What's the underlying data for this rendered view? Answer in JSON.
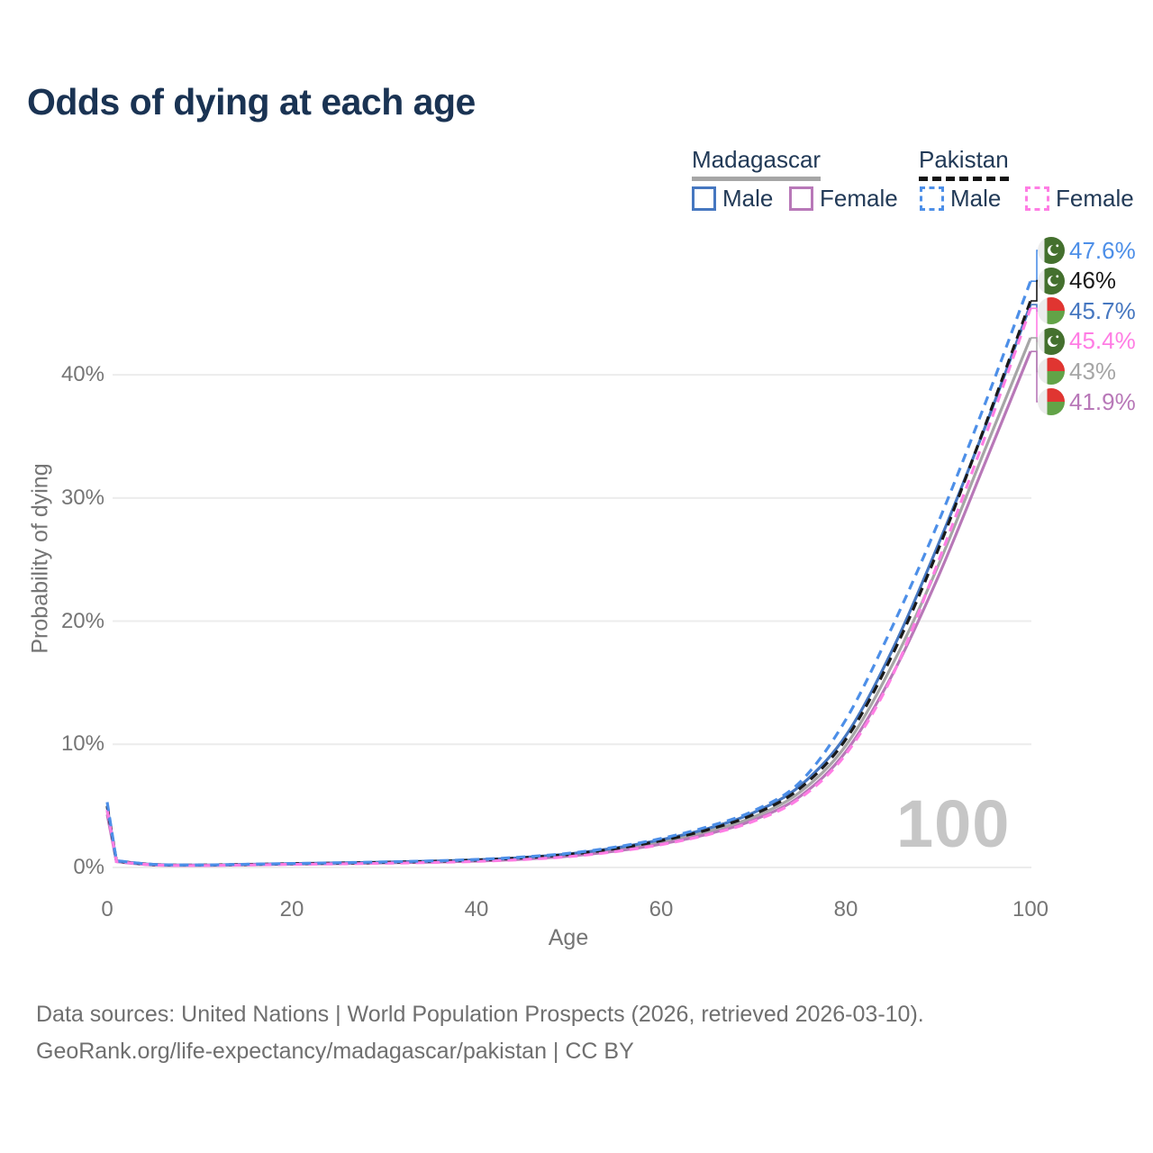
{
  "title": "Odds of dying at each age",
  "legend": {
    "groups": [
      {
        "label": "Madagascar",
        "style": "solid",
        "underline_color": "#A6A6A6"
      },
      {
        "label": "Pakistan",
        "style": "dashed",
        "underline_color": "#141414"
      }
    ],
    "entries": [
      {
        "label": "Male",
        "color": "#4677C0",
        "dash": false,
        "group": "Madagascar"
      },
      {
        "label": "Female",
        "color": "#B878B8",
        "dash": false,
        "group": "Madagascar"
      },
      {
        "label": "Male",
        "color": "#4D8FE8",
        "dash": true,
        "group": "Pakistan"
      },
      {
        "label": "Female",
        "color": "#FF7DE4",
        "dash": true,
        "group": "Pakistan"
      }
    ]
  },
  "watermark": "100",
  "footer": {
    "line1": "Data sources: United Nations | World Population Prospects (2026, retrieved 2026-03-10).",
    "line2": "GeoRank.org/life-expectancy/madagascar/pakistan | CC BY"
  },
  "chart_data": {
    "type": "line",
    "title": "Odds of dying at each age",
    "xlabel": "Age",
    "ylabel": "Probability of dying",
    "xlim": [
      0,
      100
    ],
    "ylim": [
      0,
      48
    ],
    "grid": "horizontal",
    "legend_position": "top-right",
    "x_tick_labels": [
      "0",
      "20",
      "40",
      "60",
      "80",
      "100"
    ],
    "x_tick_values": [
      0,
      20,
      40,
      60,
      80,
      100
    ],
    "y_tick_labels": [
      "0%",
      "10%",
      "20%",
      "30%",
      "40%"
    ],
    "y_tick_values": [
      0,
      10,
      20,
      30,
      40
    ],
    "x": [
      0,
      1,
      5,
      10,
      15,
      20,
      25,
      30,
      35,
      40,
      45,
      50,
      55,
      60,
      65,
      70,
      75,
      80,
      85,
      90,
      95,
      100
    ],
    "series": [
      {
        "name": "Pakistan Male",
        "flag": "pakistan",
        "color": "#4D8FE8",
        "dash": true,
        "end_label": "47.6%",
        "values": [
          5.3,
          0.55,
          0.25,
          0.2,
          0.26,
          0.32,
          0.38,
          0.45,
          0.53,
          0.65,
          0.85,
          1.15,
          1.65,
          2.35,
          3.3,
          4.6,
          6.9,
          12.0,
          19.5,
          28.0,
          37.5,
          47.6
        ]
      },
      {
        "name": "Pakistan",
        "flag": "pakistan",
        "color": "#1a1a1a",
        "dash": true,
        "end_label": "46%",
        "values": [
          5.0,
          0.52,
          0.23,
          0.19,
          0.24,
          0.3,
          0.35,
          0.41,
          0.49,
          0.6,
          0.78,
          1.06,
          1.52,
          2.18,
          3.05,
          4.3,
          6.4,
          10.4,
          17.2,
          25.8,
          35.7,
          46.0
        ]
      },
      {
        "name": "Madagascar Male",
        "flag": "madagascar",
        "color": "#4677C0",
        "dash": false,
        "end_label": "45.7%",
        "values": [
          4.9,
          0.53,
          0.24,
          0.19,
          0.25,
          0.31,
          0.37,
          0.43,
          0.51,
          0.62,
          0.81,
          1.1,
          1.58,
          2.25,
          3.15,
          4.45,
          6.6,
          10.7,
          17.6,
          26.2,
          35.6,
          45.7
        ]
      },
      {
        "name": "Pakistan Female",
        "flag": "pakistan",
        "color": "#FF7DE4",
        "dash": true,
        "end_label": "45.4%",
        "values": [
          4.7,
          0.48,
          0.21,
          0.16,
          0.2,
          0.25,
          0.29,
          0.34,
          0.4,
          0.49,
          0.64,
          0.88,
          1.28,
          1.85,
          2.65,
          3.75,
          5.6,
          9.2,
          15.5,
          24.8,
          34.8,
          45.4
        ]
      },
      {
        "name": "Madagascar",
        "flag": "madagascar",
        "color": "#A6A6A6",
        "dash": false,
        "end_label": "43%",
        "values": [
          4.6,
          0.5,
          0.22,
          0.18,
          0.23,
          0.29,
          0.34,
          0.4,
          0.47,
          0.57,
          0.74,
          1.01,
          1.45,
          2.08,
          2.92,
          4.1,
          6.1,
          9.9,
          16.4,
          24.5,
          33.8,
          43.0
        ]
      },
      {
        "name": "Madagascar Female",
        "flag": "madagascar",
        "color": "#B878B8",
        "dash": false,
        "end_label": "41.9%",
        "values": [
          4.3,
          0.47,
          0.2,
          0.16,
          0.21,
          0.27,
          0.31,
          0.37,
          0.43,
          0.52,
          0.67,
          0.92,
          1.32,
          1.9,
          2.7,
          3.85,
          5.75,
          9.4,
          15.6,
          23.6,
          32.7,
          41.9
        ]
      }
    ]
  }
}
